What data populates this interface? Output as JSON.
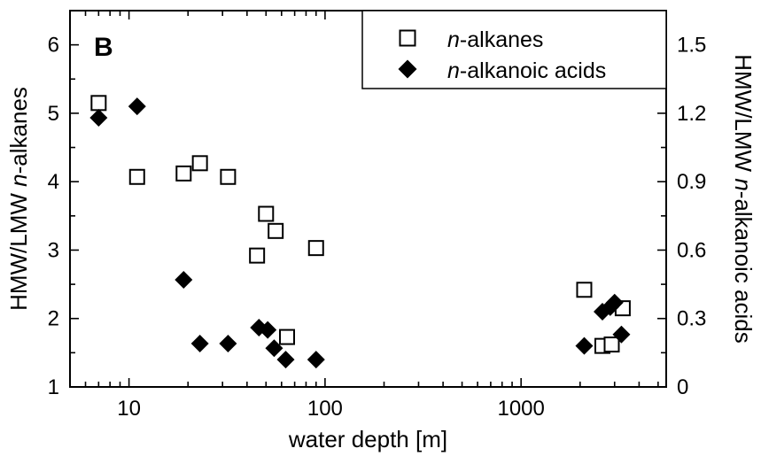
{
  "chart_data": {
    "type": "scatter",
    "panel_label": "B",
    "xlabel": "water depth [m]",
    "ylabel_left": {
      "prefix": "HMW/LMW ",
      "italic": "n",
      "suffix": "-alkanes"
    },
    "ylabel_right": {
      "prefix": "HMW/LMW ",
      "italic": "n",
      "suffix": "-alkanoic acids"
    },
    "x_scale": "log",
    "xlim": [
      5,
      5500
    ],
    "ylim_left": [
      1,
      6.5
    ],
    "ylim_right": [
      0,
      1.65
    ],
    "x_ticks": [
      10,
      100,
      1000
    ],
    "x_tick_labels": [
      "10",
      "100",
      "1000"
    ],
    "y_ticks_left": [
      1,
      2,
      3,
      4,
      5,
      6
    ],
    "y_tick_labels_left": [
      "1",
      "2",
      "3",
      "4",
      "5",
      "6"
    ],
    "y_ticks_right": [
      0,
      0.3,
      0.6,
      0.9,
      1.2,
      1.5
    ],
    "y_tick_labels_right": [
      "0",
      "0.3",
      "0.6",
      "0.9",
      "1.2",
      "1.5"
    ],
    "legend_position": "top-right",
    "grid": false,
    "series": [
      {
        "name_italic": "n",
        "name_rest": "-alkanes",
        "marker": "open-square",
        "axis": "left",
        "points": [
          {
            "x": 7,
            "y": 5.15
          },
          {
            "x": 11,
            "y": 4.07
          },
          {
            "x": 19,
            "y": 4.12
          },
          {
            "x": 23,
            "y": 4.27
          },
          {
            "x": 32,
            "y": 4.07
          },
          {
            "x": 45,
            "y": 2.92
          },
          {
            "x": 50,
            "y": 3.53
          },
          {
            "x": 56,
            "y": 3.28
          },
          {
            "x": 64,
            "y": 1.73
          },
          {
            "x": 90,
            "y": 3.03
          },
          {
            "x": 2100,
            "y": 2.42
          },
          {
            "x": 2600,
            "y": 1.6
          },
          {
            "x": 2900,
            "y": 1.62
          },
          {
            "x": 3300,
            "y": 2.15
          }
        ]
      },
      {
        "name_italic": "n",
        "name_rest": "-alkanoic acids",
        "marker": "filled-diamond",
        "axis": "right",
        "points": [
          {
            "x": 7,
            "y": 1.18
          },
          {
            "x": 11,
            "y": 1.23
          },
          {
            "x": 19,
            "y": 0.47
          },
          {
            "x": 23,
            "y": 0.19
          },
          {
            "x": 32,
            "y": 0.19
          },
          {
            "x": 46,
            "y": 0.26
          },
          {
            "x": 51,
            "y": 0.25
          },
          {
            "x": 55,
            "y": 0.17
          },
          {
            "x": 63,
            "y": 0.12
          },
          {
            "x": 90,
            "y": 0.12
          },
          {
            "x": 2100,
            "y": 0.18
          },
          {
            "x": 2600,
            "y": 0.33
          },
          {
            "x": 2850,
            "y": 0.35
          },
          {
            "x": 3000,
            "y": 0.37
          },
          {
            "x": 3250,
            "y": 0.23
          }
        ]
      }
    ]
  },
  "colors": {
    "ink": "#000000",
    "background": "#ffffff"
  }
}
